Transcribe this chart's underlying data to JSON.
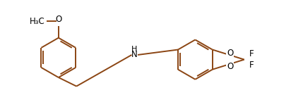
{
  "bg_color": "#ffffff",
  "bond_color": "#8B4513",
  "atom_color": "#000000",
  "fig_width": 4.12,
  "fig_height": 1.52,
  "dpi": 100,
  "lw": 1.4,
  "font_size": 8.5,
  "xlim": [
    0,
    10.5
  ],
  "ylim": [
    -1.8,
    1.8
  ]
}
